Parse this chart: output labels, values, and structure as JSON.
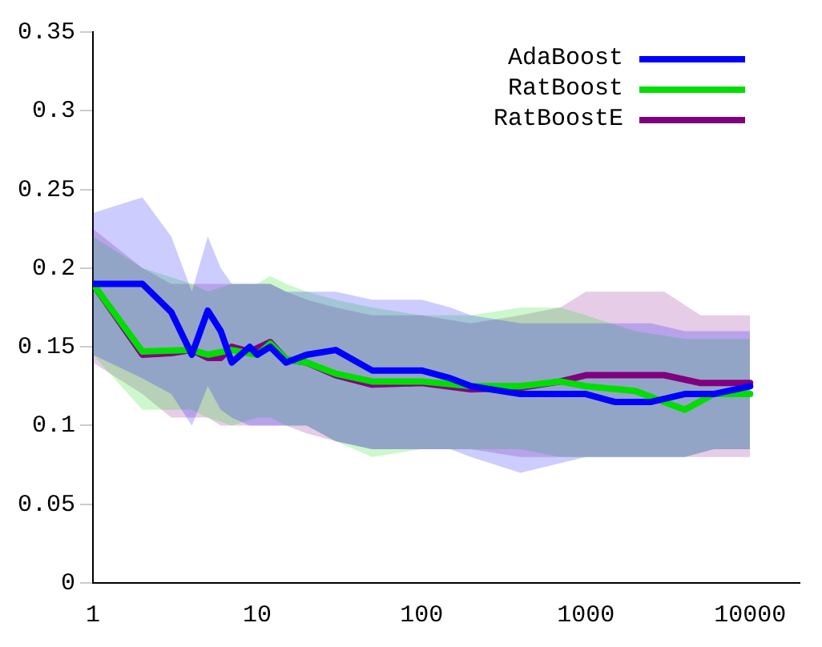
{
  "chart_data": {
    "type": "line",
    "log": "x",
    "legend": "top right",
    "xlim": [
      1,
      20000
    ],
    "xticks": [
      1,
      10,
      100,
      1000,
      10000
    ],
    "ylim": [
      0,
      0.35
    ],
    "yticks": [
      0,
      0.05,
      0.1,
      0.15,
      0.2,
      0.25,
      0.3,
      0.35
    ],
    "series": [
      {
        "name": "AdaBoost",
        "color": "#0000ff",
        "x": [
          1,
          2,
          3,
          4,
          5,
          6,
          7,
          9,
          10,
          12,
          15,
          20,
          30,
          50,
          100,
          150,
          200,
          400,
          1000,
          1500,
          2500,
          4000,
          6000,
          10000
        ],
        "values": [
          0.19,
          0.19,
          0.172,
          0.145,
          0.173,
          0.16,
          0.14,
          0.15,
          0.145,
          0.15,
          0.14,
          0.145,
          0.148,
          0.135,
          0.135,
          0.13,
          0.125,
          0.12,
          0.12,
          0.115,
          0.115,
          0.12,
          0.12,
          0.125
        ],
        "lower": [
          0.145,
          0.13,
          0.12,
          0.1,
          0.125,
          0.11,
          0.105,
          0.1,
          0.1,
          0.1,
          0.1,
          0.1,
          0.09,
          0.085,
          0.085,
          0.085,
          0.08,
          0.07,
          0.08,
          0.08,
          0.08,
          0.08,
          0.085,
          0.085
        ],
        "upper": [
          0.235,
          0.245,
          0.22,
          0.185,
          0.22,
          0.2,
          0.19,
          0.19,
          0.19,
          0.19,
          0.185,
          0.185,
          0.185,
          0.18,
          0.18,
          0.175,
          0.17,
          0.165,
          0.165,
          0.165,
          0.165,
          0.16,
          0.16,
          0.16
        ]
      },
      {
        "name": "RatBoost",
        "color": "#00dd00",
        "x": [
          1,
          2,
          4,
          5,
          7,
          10,
          12,
          15,
          20,
          30,
          50,
          100,
          200,
          400,
          700,
          1000,
          2000,
          4000,
          6000,
          10000
        ],
        "values": [
          0.19,
          0.147,
          0.148,
          0.145,
          0.148,
          0.145,
          0.152,
          0.142,
          0.14,
          0.133,
          0.128,
          0.128,
          0.125,
          0.125,
          0.128,
          0.125,
          0.122,
          0.11,
          0.12,
          0.12
        ],
        "lower": [
          0.145,
          0.11,
          0.11,
          0.105,
          0.1,
          0.105,
          0.105,
          0.1,
          0.1,
          0.09,
          0.08,
          0.085,
          0.085,
          0.085,
          0.08,
          0.08,
          0.08,
          0.08,
          0.085,
          0.085
        ],
        "upper": [
          0.22,
          0.2,
          0.19,
          0.185,
          0.19,
          0.19,
          0.195,
          0.19,
          0.185,
          0.18,
          0.175,
          0.17,
          0.17,
          0.175,
          0.175,
          0.17,
          0.16,
          0.155,
          0.155,
          0.155
        ]
      },
      {
        "name": "RatBoostE",
        "color": "#800080",
        "x": [
          1,
          2,
          3,
          4,
          5,
          6,
          7,
          9,
          12,
          15,
          20,
          30,
          50,
          100,
          200,
          400,
          700,
          1000,
          3000,
          5000,
          10000
        ],
        "values": [
          0.19,
          0.145,
          0.146,
          0.148,
          0.143,
          0.143,
          0.15,
          0.147,
          0.153,
          0.142,
          0.14,
          0.132,
          0.126,
          0.127,
          0.123,
          0.124,
          0.128,
          0.132,
          0.132,
          0.127,
          0.127
        ],
        "lower": [
          0.14,
          0.12,
          0.105,
          0.105,
          0.105,
          0.1,
          0.1,
          0.1,
          0.1,
          0.1,
          0.095,
          0.09,
          0.085,
          0.085,
          0.085,
          0.08,
          0.08,
          0.08,
          0.08,
          0.08,
          0.08
        ],
        "upper": [
          0.225,
          0.2,
          0.19,
          0.19,
          0.19,
          0.19,
          0.19,
          0.19,
          0.19,
          0.185,
          0.18,
          0.175,
          0.17,
          0.17,
          0.165,
          0.17,
          0.175,
          0.185,
          0.185,
          0.17,
          0.17
        ]
      }
    ]
  }
}
